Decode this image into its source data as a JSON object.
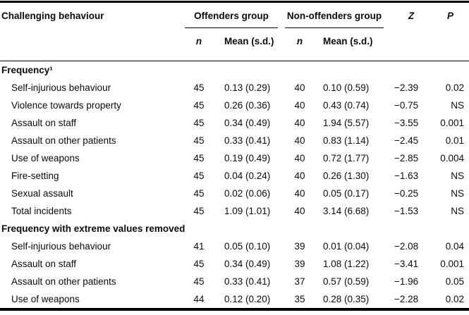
{
  "table": {
    "headers": {
      "behaviour": "Challenging behaviour",
      "offenders_group": "Offenders group",
      "non_offenders_group": "Non-offenders group",
      "z": "Z",
      "p": "P",
      "n": "n",
      "mean_sd": "Mean (s.d.)"
    },
    "sections": [
      {
        "title": "Frequency¹",
        "rows": [
          {
            "label": "Self-injurious behaviour",
            "n1": "45",
            "mean1": "0.13 (0.29)",
            "n2": "40",
            "mean2": "0.10 (0.59)",
            "z": "−2.39",
            "p": "0.02"
          },
          {
            "label": "Violence towards property",
            "n1": "45",
            "mean1": "0.26 (0.36)",
            "n2": "40",
            "mean2": "0.43 (0.74)",
            "z": "−0.75",
            "p": "NS"
          },
          {
            "label": "Assault on staff",
            "n1": "45",
            "mean1": "0.34 (0.49)",
            "n2": "40",
            "mean2": "1.94 (5.57)",
            "z": "−3.55",
            "p": "0.001"
          },
          {
            "label": "Assault on other patients",
            "n1": "45",
            "mean1": "0.33 (0.41)",
            "n2": "40",
            "mean2": "0.83 (1.14)",
            "z": "−2.45",
            "p": "0.01"
          },
          {
            "label": "Use of weapons",
            "n1": "45",
            "mean1": "0.19 (0.49)",
            "n2": "40",
            "mean2": "0.72 (1.77)",
            "z": "−2.85",
            "p": "0.004"
          },
          {
            "label": "Fire-setting",
            "n1": "45",
            "mean1": "0.04 (0.24)",
            "n2": "40",
            "mean2": "0.26 (1.30)",
            "z": "−1.63",
            "p": "NS"
          },
          {
            "label": "Sexual assault",
            "n1": "45",
            "mean1": "0.02 (0.06)",
            "n2": "40",
            "mean2": "0.05 (0.17)",
            "z": "−0.25",
            "p": "NS"
          },
          {
            "label": "Total incidents",
            "n1": "45",
            "mean1": "1.09 (1.01)",
            "n2": "40",
            "mean2": "3.14 (6.68)",
            "z": "−1.53",
            "p": "NS"
          }
        ]
      },
      {
        "title": "Frequency with extreme values removed",
        "rows": [
          {
            "label": "Self-injurious behaviour",
            "n1": "41",
            "mean1": "0.05 (0.10)",
            "n2": "39",
            "mean2": "0.01 (0.04)",
            "z": "−2.08",
            "p": "0.04"
          },
          {
            "label": "Assault on staff",
            "n1": "45",
            "mean1": "0.34 (0.49)",
            "n2": "39",
            "mean2": "1.08 (1.22)",
            "z": "−3.41",
            "p": "0.001"
          },
          {
            "label": "Assault on other patients",
            "n1": "45",
            "mean1": "0.33 (0.41)",
            "n2": "37",
            "mean2": "0.57 (0.59)",
            "z": "−1.96",
            "p": "0.05"
          },
          {
            "label": "Use of weapons",
            "n1": "44",
            "mean1": "0.12 (0.20)",
            "n2": "35",
            "mean2": "0.28 (0.35)",
            "z": "−2.28",
            "p": "0.02"
          }
        ]
      }
    ]
  }
}
